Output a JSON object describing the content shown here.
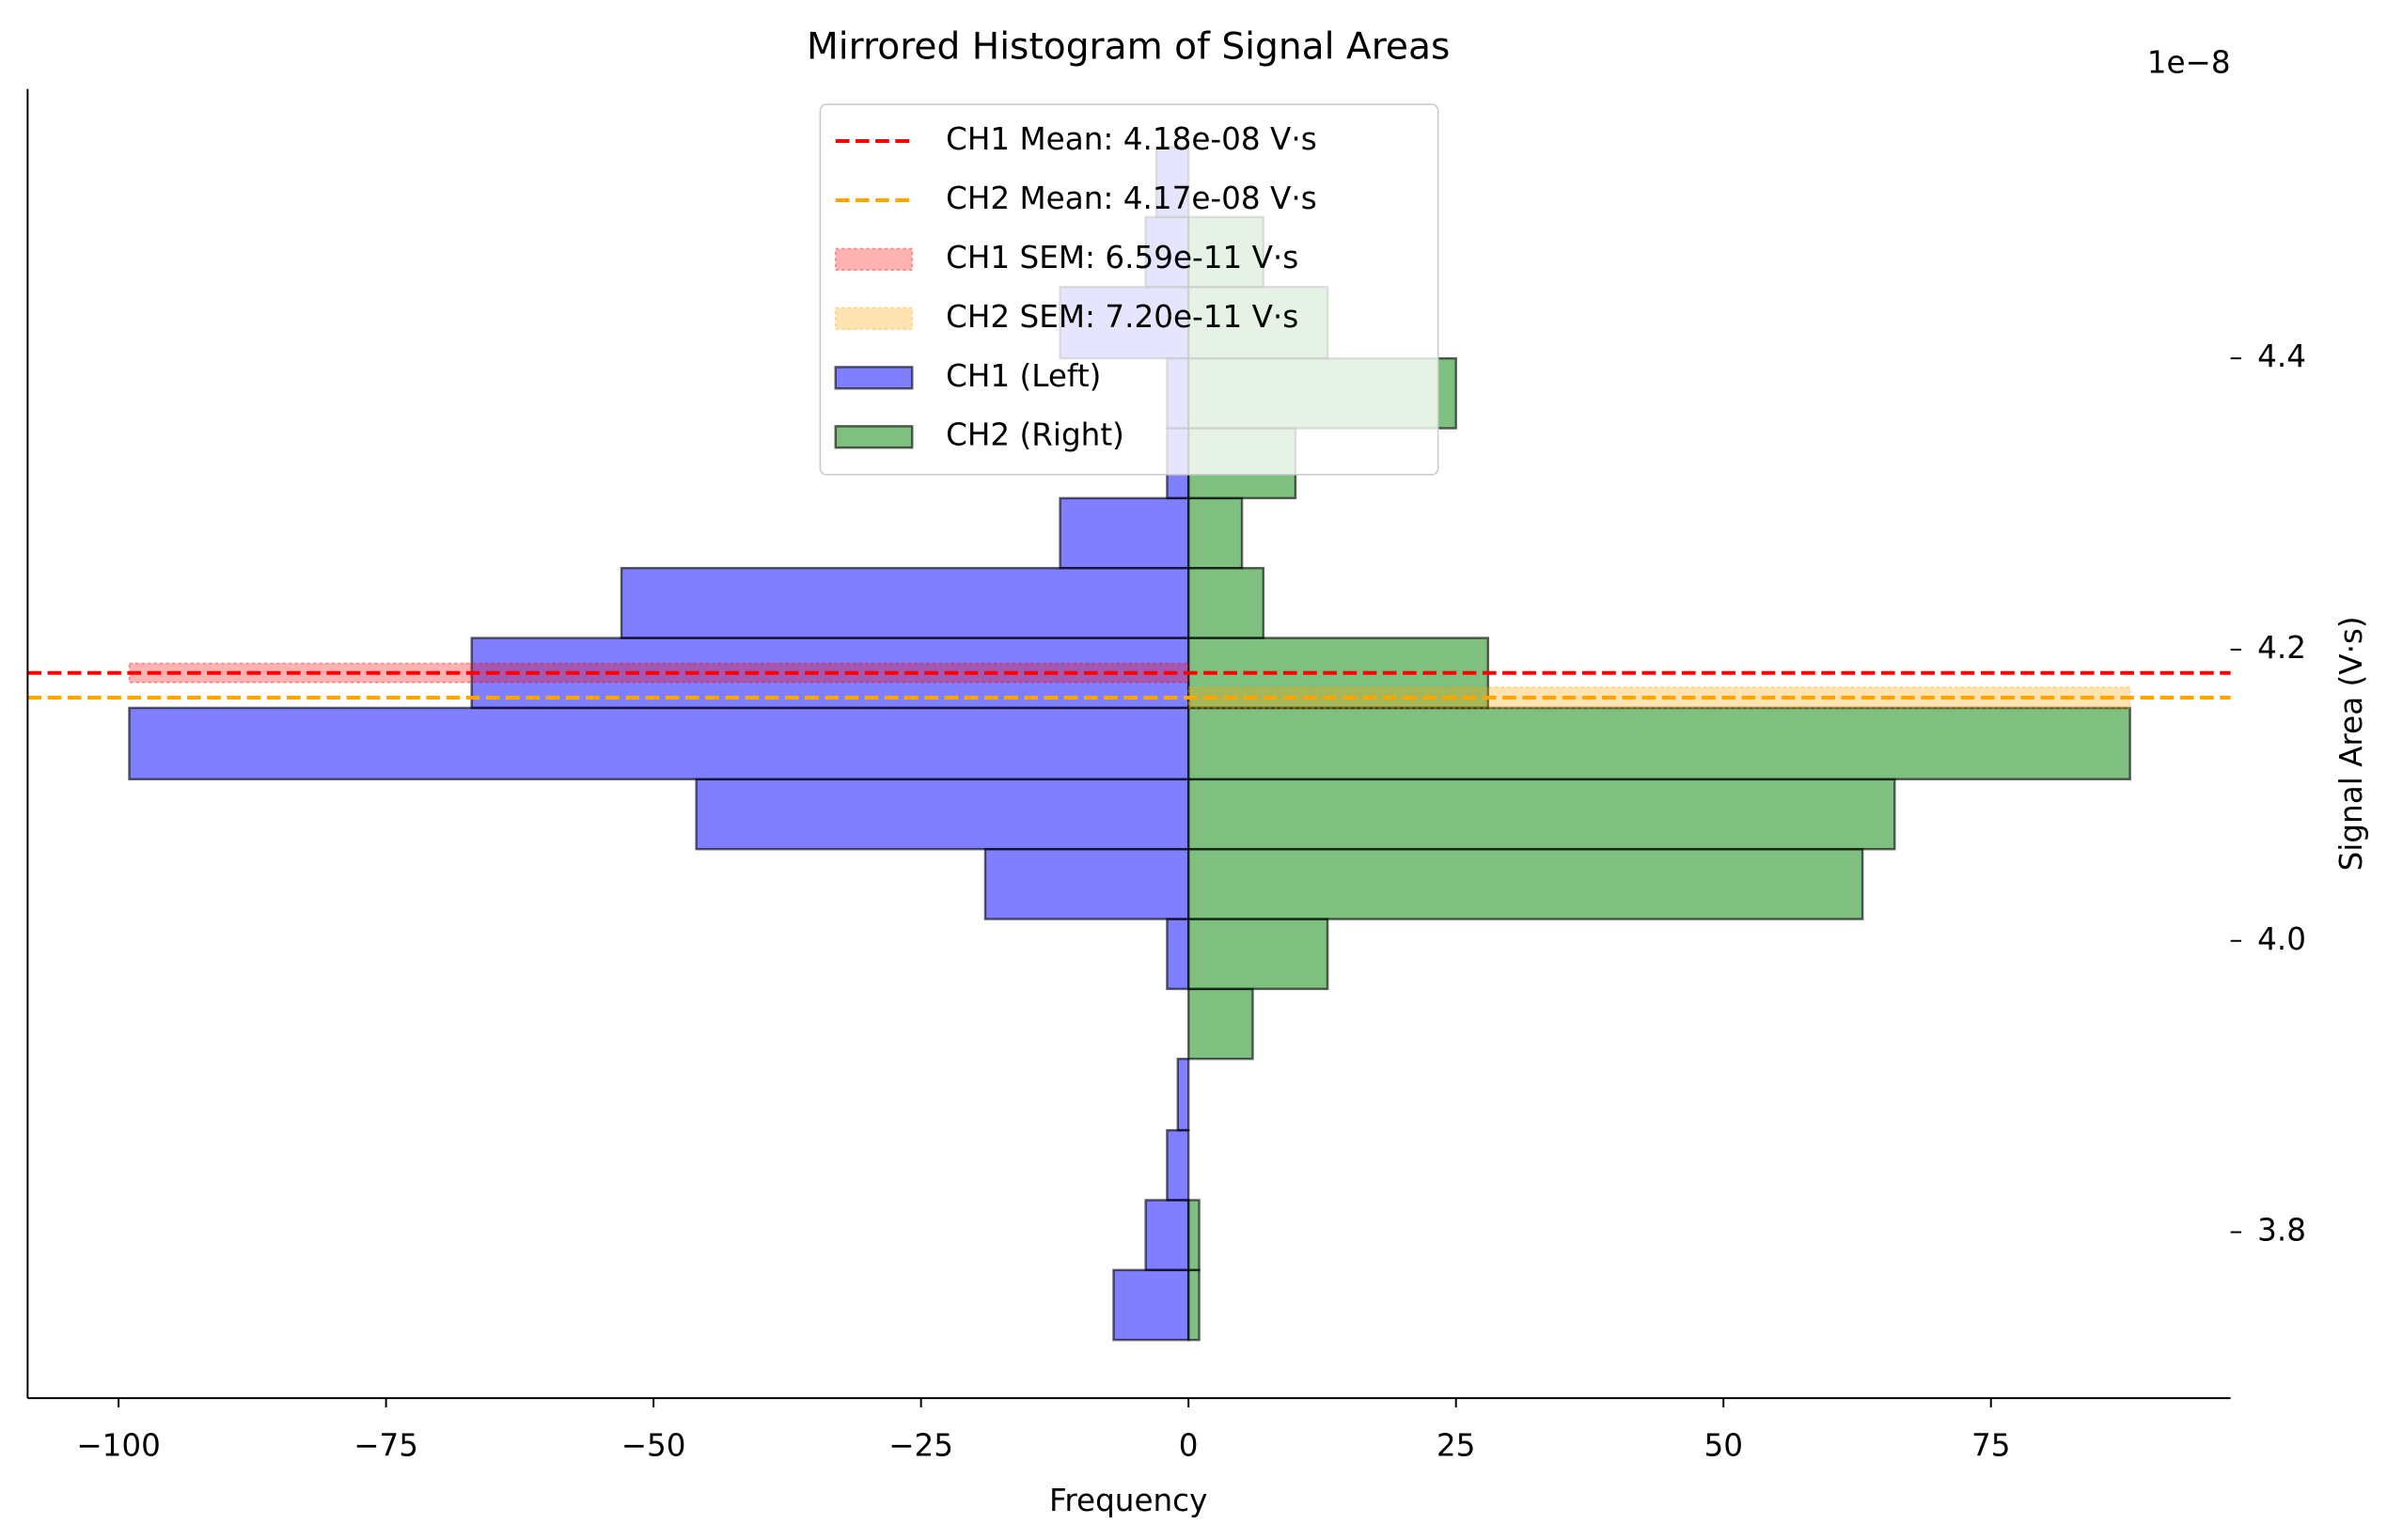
{
  "chart_data": {
    "type": "mirrored_histogram",
    "title": "Mirrored Histogram of Signal Areas",
    "x_label": "Frequency",
    "y_label": "Signal Area (V·s)",
    "y_offset_label": "1e−8",
    "bins": [
      3.726,
      3.774,
      3.822,
      3.87,
      3.919,
      3.967,
      4.015,
      4.063,
      4.111,
      4.16,
      4.208,
      4.256,
      4.304,
      4.352,
      4.4,
      4.449,
      4.497,
      4.545
    ],
    "series": [
      {
        "name": "CH1 (Left)",
        "color": "#0000ff",
        "alpha": 0.5,
        "values": [
          -7,
          -4,
          -2,
          -1,
          0,
          -2,
          -19,
          -46,
          -99,
          -67,
          -53,
          -12,
          -2,
          -2,
          -12,
          -4,
          -3
        ]
      },
      {
        "name": "CH2 (Right)",
        "color": "#008000",
        "alpha": 0.5,
        "values": [
          1,
          1,
          0,
          0,
          6,
          13,
          63,
          66,
          88,
          28,
          7,
          5,
          10,
          25,
          13,
          7,
          0
        ]
      }
    ],
    "reference_lines": [
      {
        "name": "CH1 Mean: 4.18e-08 V·s",
        "value": 4.184,
        "color": "#ff0000",
        "sem_name": "CH1 SEM: 6.59e-11 V·s",
        "sem": 0.00659
      },
      {
        "name": "CH2 Mean: 4.17e-08 V·s",
        "value": 4.167,
        "color": "#ffa500",
        "sem_name": "CH2 SEM: 7.20e-11 V·s",
        "sem": 0.0072
      }
    ],
    "xlim": [
      -108.5,
      97.4
    ],
    "ylim": [
      3.686,
      4.585
    ],
    "xticks": [
      {
        "value": -100,
        "label": "−100"
      },
      {
        "value": -75,
        "label": "−75"
      },
      {
        "value": -50,
        "label": "−50"
      },
      {
        "value": -25,
        "label": "−25"
      },
      0,
      25,
      50,
      75
    ],
    "yticks": [
      3.8,
      {
        "value": 4.0,
        "label": "4.0"
      },
      4.2,
      4.4
    ],
    "y_axis_side": "right",
    "legend_position": "upper center"
  }
}
